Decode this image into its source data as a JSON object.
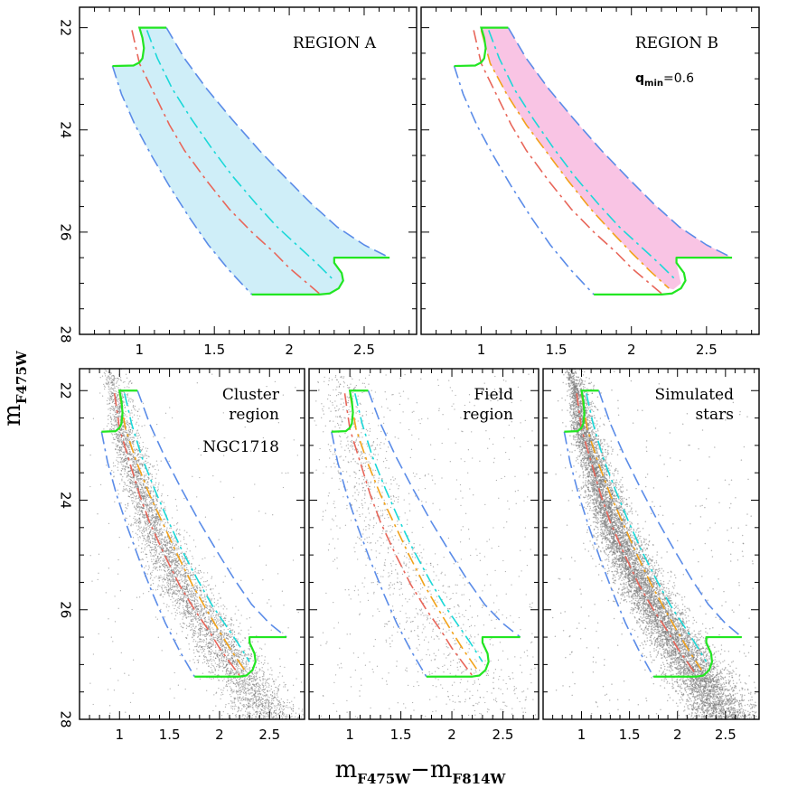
{
  "figure": {
    "ylabel_main": "m",
    "ylabel_sub": "F475W",
    "xlabel_m1": "m",
    "xlabel_sub1": "F475W",
    "xlabel_minus": "−",
    "xlabel_m2": "m",
    "xlabel_sub2": "F814W"
  },
  "colors": {
    "outer_boundary": "#5b8ce8",
    "equal_mass": "#1ad8d8",
    "single_star": "#e8665a",
    "q_min": "#f2a21a",
    "green_boundary": "#22e622",
    "fill_region_a": "#cfeef8",
    "fill_region_b": "#f9c4e4",
    "stars": "#7a7a7a"
  },
  "chart_data": [
    {
      "type": "scatter",
      "panel": "top-left",
      "labels": [
        "REGION A"
      ],
      "fill_region": "A",
      "has_stars": false,
      "has_qmin_line": false,
      "xlim": [
        0.6,
        2.85
      ],
      "ylim": [
        28,
        21.6
      ],
      "xticks": [
        "1",
        "1.5",
        "2",
        "2.5"
      ],
      "yticks": [
        "22",
        "24",
        "26",
        "28"
      ]
    },
    {
      "type": "scatter",
      "panel": "top-right",
      "labels": [
        "REGION B"
      ],
      "qmin_label": "q",
      "qmin_sub": "min",
      "qmin_value": "=0.6",
      "fill_region": "B",
      "has_stars": false,
      "has_qmin_line": true,
      "xlim": [
        0.6,
        2.85
      ],
      "ylim": [
        28,
        21.6
      ],
      "xticks": [
        "1",
        "1.5",
        "2",
        "2.5"
      ]
    },
    {
      "type": "scatter",
      "panel": "bottom-left",
      "labels": [
        "Cluster",
        "region",
        "NGC1718"
      ],
      "fill_region": "",
      "has_stars": true,
      "star_density": "medium",
      "has_qmin_line": true,
      "xlim": [
        0.6,
        2.85
      ],
      "ylim": [
        28,
        21.6
      ],
      "xticks": [
        "1",
        "1.5",
        "2",
        "2.5"
      ],
      "yticks": [
        "22",
        "24",
        "26",
        "28"
      ]
    },
    {
      "type": "scatter",
      "panel": "bottom-middle",
      "labels": [
        "Field",
        "region"
      ],
      "fill_region": "",
      "has_stars": true,
      "star_density": "sparse",
      "has_qmin_line": true,
      "xlim": [
        0.6,
        2.85
      ],
      "ylim": [
        28,
        21.6
      ],
      "xticks": [
        "1",
        "1.5",
        "2",
        "2.5"
      ]
    },
    {
      "type": "scatter",
      "panel": "bottom-right",
      "labels": [
        "Simulated",
        "stars"
      ],
      "fill_region": "",
      "has_stars": true,
      "star_density": "dense",
      "has_qmin_line": true,
      "xlim": [
        0.6,
        2.85
      ],
      "ylim": [
        28,
        21.6
      ],
      "xticks": [
        "1",
        "1.5",
        "2",
        "2.5"
      ]
    }
  ],
  "curves": {
    "single_star_ridge": {
      "x": [
        0.95,
        1.0,
        1.1,
        1.2,
        1.3,
        1.45,
        1.6,
        1.75,
        1.9,
        2.0,
        2.1,
        2.2
      ],
      "y": [
        22.05,
        22.7,
        23.3,
        23.9,
        24.4,
        25.0,
        25.55,
        26.0,
        26.4,
        26.7,
        26.95,
        27.2
      ]
    },
    "equal_mass_ridge": {
      "x": [
        1.05,
        1.12,
        1.22,
        1.35,
        1.48,
        1.62,
        1.78,
        1.92,
        2.05,
        2.18,
        2.3
      ],
      "y": [
        22.05,
        22.6,
        23.2,
        23.8,
        24.35,
        24.9,
        25.45,
        25.9,
        26.25,
        26.6,
        26.95
      ]
    },
    "qmin_ridge": {
      "x": [
        1.0,
        1.06,
        1.17,
        1.3,
        1.44,
        1.58,
        1.73,
        1.87,
        2.0,
        2.12,
        2.25
      ],
      "y": [
        22.05,
        22.7,
        23.3,
        23.9,
        24.45,
        25.0,
        25.55,
        26.0,
        26.4,
        26.75,
        27.1
      ]
    },
    "red_boundary": {
      "x": [
        1.18,
        1.3,
        1.45,
        1.62,
        1.8,
        1.98,
        2.15,
        2.32,
        2.5,
        2.67
      ],
      "y": [
        22.0,
        22.6,
        23.2,
        23.8,
        24.4,
        24.95,
        25.45,
        25.9,
        26.25,
        26.5
      ]
    },
    "blue_boundary": {
      "x": [
        0.82,
        0.88,
        0.97,
        1.08,
        1.2,
        1.33,
        1.46,
        1.6,
        1.75
      ],
      "y": [
        22.75,
        23.3,
        23.9,
        24.5,
        25.1,
        25.7,
        26.25,
        26.75,
        27.22
      ]
    },
    "green_top": {
      "x": [
        1.0,
        1.18
      ],
      "y": [
        22.0,
        22.0
      ]
    },
    "green_hook": {
      "x": [
        1.0,
        1.02,
        1.03,
        1.02,
        1.0,
        0.96,
        0.82
      ],
      "y": [
        22.0,
        22.2,
        22.4,
        22.6,
        22.68,
        22.74,
        22.75
      ]
    },
    "green_bottom": {
      "x": [
        1.75,
        2.2,
        2.27,
        2.33,
        2.36,
        2.35,
        2.3,
        2.3,
        2.67
      ],
      "y": [
        27.22,
        27.22,
        27.2,
        27.1,
        26.95,
        26.8,
        26.6,
        26.5,
        26.5
      ]
    }
  }
}
